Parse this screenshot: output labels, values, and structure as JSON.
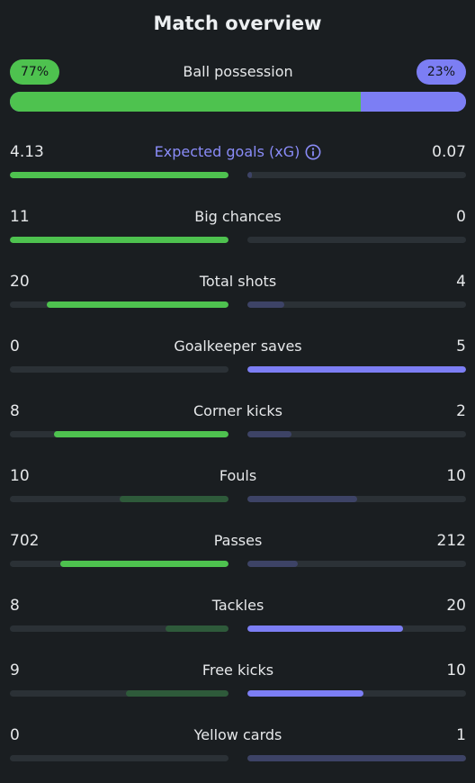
{
  "title": "Match overview",
  "possession": {
    "label": "Ball possession",
    "home": "77%",
    "away": "23%",
    "home_fraction": 0.77
  },
  "colors": {
    "home_strong": "#4ec24f",
    "home_dim": "#2e5a3a",
    "away_strong": "#7c7ef4",
    "away_dim": "#3d4366",
    "track": "#2b3136"
  },
  "stats": [
    {
      "label": "Expected goals (xG)",
      "home": "4.13",
      "away": "0.07",
      "home_frac": 1.0,
      "away_frac": 0.02,
      "home_strong": true,
      "away_strong": false,
      "info": true
    },
    {
      "label": "Big chances",
      "home": "11",
      "away": "0",
      "home_frac": 1.0,
      "away_frac": 0.0,
      "home_strong": true,
      "away_strong": false
    },
    {
      "label": "Total shots",
      "home": "20",
      "away": "4",
      "home_frac": 0.83,
      "away_frac": 0.17,
      "home_strong": true,
      "away_strong": false
    },
    {
      "label": "Goalkeeper saves",
      "home": "0",
      "away": "5",
      "home_frac": 0.0,
      "away_frac": 1.0,
      "home_strong": false,
      "away_strong": true
    },
    {
      "label": "Corner kicks",
      "home": "8",
      "away": "2",
      "home_frac": 0.8,
      "away_frac": 0.2,
      "home_strong": true,
      "away_strong": false
    },
    {
      "label": "Fouls",
      "home": "10",
      "away": "10",
      "home_frac": 0.5,
      "away_frac": 0.5,
      "home_strong": false,
      "away_strong": false
    },
    {
      "label": "Passes",
      "home": "702",
      "away": "212",
      "home_frac": 0.77,
      "away_frac": 0.23,
      "home_strong": true,
      "away_strong": false
    },
    {
      "label": "Tackles",
      "home": "8",
      "away": "20",
      "home_frac": 0.29,
      "away_frac": 0.71,
      "home_strong": false,
      "away_strong": true
    },
    {
      "label": "Free kicks",
      "home": "9",
      "away": "10",
      "home_frac": 0.47,
      "away_frac": 0.53,
      "home_strong": false,
      "away_strong": true
    },
    {
      "label": "Yellow cards",
      "home": "0",
      "away": "1",
      "home_frac": 0.0,
      "away_frac": 1.0,
      "home_strong": false,
      "away_strong": false
    }
  ]
}
